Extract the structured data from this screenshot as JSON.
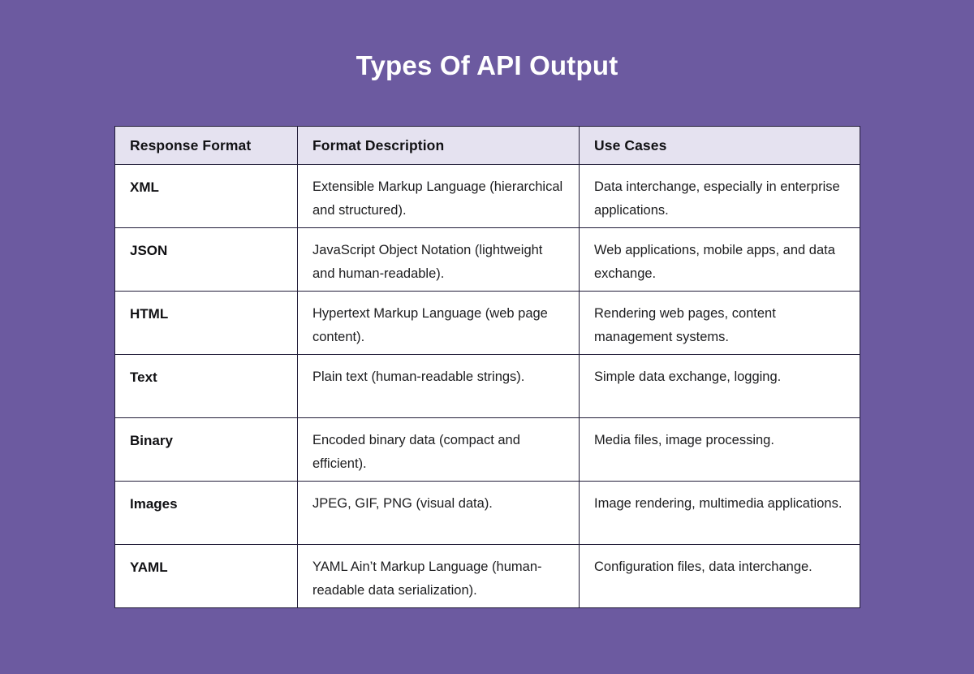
{
  "theme": {
    "background_color": "#6c5aa0",
    "header_background_color": "#e5e2f0",
    "border_color": "#211c38",
    "title_color": "#ffffff"
  },
  "page": {
    "title": "Types Of API Output"
  },
  "table": {
    "columns": [
      "Response Format",
      "Format Description",
      "Use Cases"
    ],
    "rows": [
      {
        "format": "XML",
        "description": "Extensible Markup Language (hierarchical and structured).",
        "use_cases": "Data interchange, especially in enterprise applications."
      },
      {
        "format": "JSON",
        "description": "JavaScript Object Notation (lightweight and human-readable).",
        "use_cases": "Web applications, mobile apps, and data exchange."
      },
      {
        "format": "HTML",
        "description": "Hypertext Markup Language (web page content).",
        "use_cases": "Rendering web pages, content management systems."
      },
      {
        "format": "Text",
        "description": "Plain text (human-readable strings).",
        "use_cases": "Simple data exchange, logging."
      },
      {
        "format": "Binary",
        "description": "Encoded binary data (compact and efficient).",
        "use_cases": "Media files, image processing."
      },
      {
        "format": "Images",
        "description": "JPEG, GIF, PNG (visual data).",
        "use_cases": "Image rendering, multimedia applications."
      },
      {
        "format": "YAML",
        "description": "YAML Ain’t Markup Language (human-readable data serialization).",
        "use_cases": "Configuration files, data interchange."
      }
    ]
  }
}
